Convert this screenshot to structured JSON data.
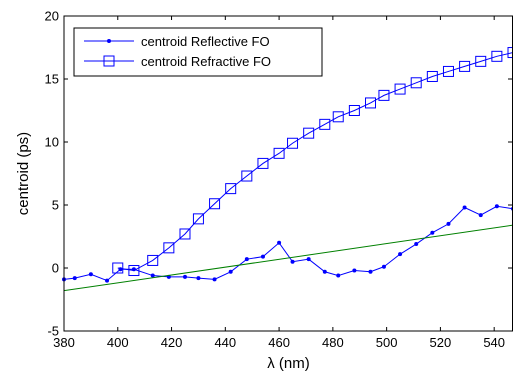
{
  "chart_data": {
    "type": "line",
    "title": "",
    "xlabel": "λ (nm)",
    "ylabel": "centroid (ps)",
    "xlim": [
      380,
      547
    ],
    "ylim": [
      -5,
      20
    ],
    "xticks": [
      380,
      400,
      420,
      440,
      460,
      480,
      500,
      520,
      540
    ],
    "yticks": [
      -5,
      0,
      5,
      10,
      15,
      20
    ],
    "grid": false,
    "legend_position": "top-left",
    "series": [
      {
        "name": "centroid Reflective FO",
        "color": "#0000ff",
        "marker": "dot",
        "x": [
          380,
          384,
          390,
          396,
          401,
          406,
          413,
          419,
          425,
          430,
          436,
          442,
          448,
          454,
          460,
          465,
          471,
          477,
          482,
          488,
          494,
          499,
          505,
          511,
          517,
          523,
          529,
          535,
          541,
          547
        ],
        "y": [
          -0.9,
          -0.8,
          -0.5,
          -1.0,
          -0.1,
          -0.1,
          -0.6,
          -0.7,
          -0.7,
          -0.8,
          -0.9,
          -0.3,
          0.7,
          0.9,
          2.0,
          0.5,
          0.7,
          -0.3,
          -0.6,
          -0.2,
          -0.3,
          0.1,
          1.1,
          1.9,
          2.8,
          3.5,
          4.8,
          4.2,
          4.9,
          4.7
        ]
      },
      {
        "name": "centroid Refractive FO",
        "color": "#0000ff",
        "marker": "square",
        "x": [
          400,
          406,
          413,
          419,
          425,
          430,
          436,
          442,
          448,
          454,
          460,
          465,
          471,
          477,
          482,
          488,
          494,
          499,
          505,
          511,
          517,
          523,
          529,
          535,
          541,
          547
        ],
        "y": [
          0.0,
          -0.2,
          0.6,
          1.6,
          2.7,
          3.9,
          5.1,
          6.3,
          7.3,
          8.3,
          9.1,
          9.9,
          10.7,
          11.4,
          12.0,
          12.5,
          13.1,
          13.7,
          14.2,
          14.7,
          15.2,
          15.6,
          16.0,
          16.4,
          16.8,
          17.1
        ]
      },
      {
        "name": "",
        "color": "#008000",
        "marker": "none",
        "x": [
          380,
          547
        ],
        "y": [
          -1.8,
          3.4
        ]
      }
    ],
    "legend": [
      {
        "label": "centroid Reflective FO",
        "series_index": 0
      },
      {
        "label": "centroid Refractive FO",
        "series_index": 1
      }
    ]
  }
}
